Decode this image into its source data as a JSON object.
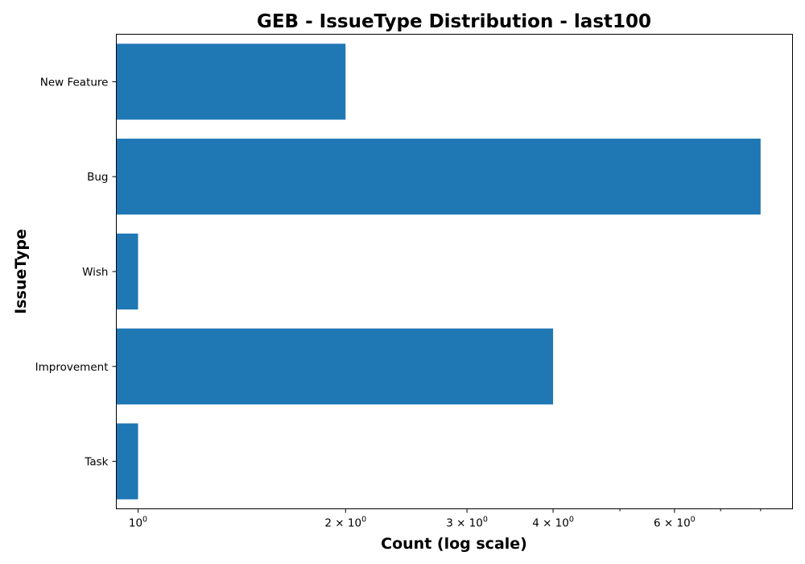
{
  "chart_data": {
    "type": "bar",
    "orientation": "horizontal",
    "title": "GEB - IssueType Distribution - last100",
    "xlabel": "Count (log scale)",
    "ylabel": "IssueType",
    "x_scale": "log",
    "xlim": [
      0.93,
      8.9
    ],
    "categories": [
      "New Feature",
      "Bug",
      "Wish",
      "Improvement",
      "Task"
    ],
    "values": [
      2,
      8,
      1,
      4,
      1
    ],
    "x_major_ticks": [
      {
        "value": 1,
        "label_base": "10",
        "label_exp": "0"
      },
      {
        "value": 2,
        "label_base": "2 × 10",
        "label_exp": "0"
      },
      {
        "value": 3,
        "label_base": "3 × 10",
        "label_exp": "0"
      },
      {
        "value": 4,
        "label_base": "4 × 10",
        "label_exp": "0"
      },
      {
        "value": 6,
        "label_base": "6 × 10",
        "label_exp": "0"
      }
    ],
    "x_minor_ticks": [
      5,
      7,
      8
    ],
    "bar_color": "#1f77b4",
    "grid": false,
    "legend": false
  }
}
